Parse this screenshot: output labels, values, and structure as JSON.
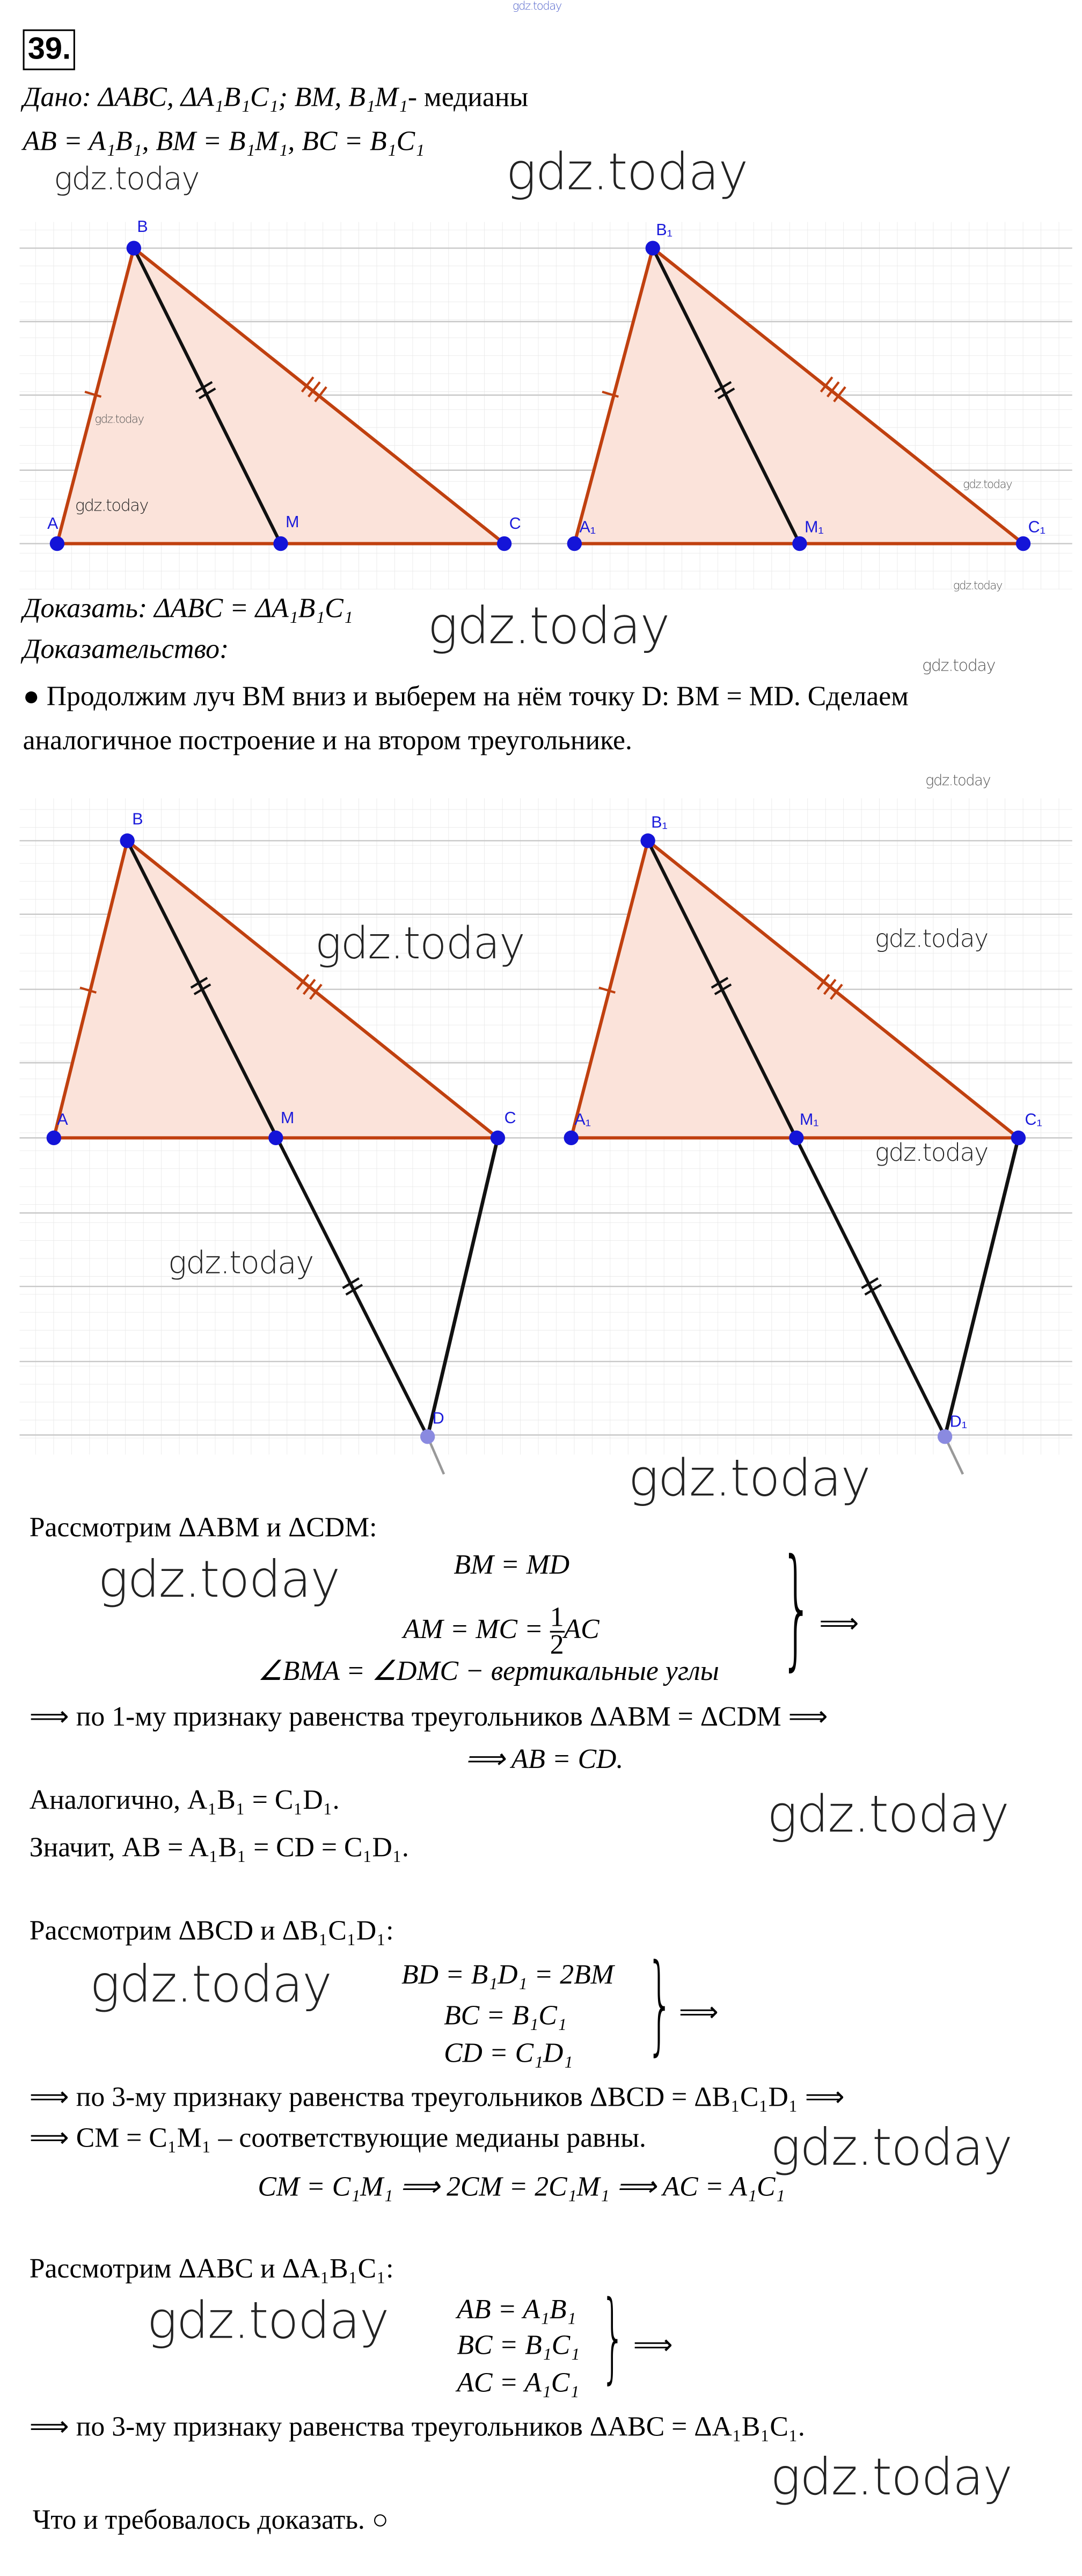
{
  "watermarks": {
    "text": "gdz.today"
  },
  "task_number": "39.",
  "given": {
    "label": "Дано",
    "line1": ": ΔABC, ΔA₁B₁C₁; BM, B₁M₁",
    "line1_tail": "- медианы",
    "line2": "AB = A₁B₁, BM = B₁M₁, BC = B₁C₁"
  },
  "figure1": {
    "labels": {
      "A": "A",
      "B": "B",
      "C": "C",
      "M": "M",
      "A1": "A₁",
      "B1": "B₁",
      "C1": "C₁",
      "M1": "M₁"
    }
  },
  "prove": {
    "label": "Доказать",
    "statement": ": ΔABC = ΔA₁B₁C₁"
  },
  "proof_label": "Доказательство:",
  "step1": {
    "line1": "● Продолжим луч BM вниз и выберем на нём точку D: BM = MD. Сделаем",
    "line2": "аналогичное построение и на втором треугольнике."
  },
  "figure2": {
    "labels": {
      "A": "A",
      "B": "B",
      "C": "C",
      "M": "M",
      "D": "D",
      "A1": "A₁",
      "B1": "B₁",
      "C1": "C₁",
      "M1": "M₁",
      "D1": "D₁"
    }
  },
  "part1": {
    "intro": "Рассмотрим ΔABM и ΔCDM:",
    "sys": [
      "BM = MD",
      "AM = MC = ",
      "AC",
      "∠BMA = ∠DMC − вертикальные углы"
    ],
    "frac_num": "1",
    "frac_den": "2",
    "implies": "⟹",
    "concl1": "⟹ по 1-му признаку равенства треугольников  ΔABM =  ΔCDM ⟹",
    "concl2": "⟹ AB = CD.",
    "similar": "Аналогично, A₁B₁ = C₁D₁.",
    "hence": "Значит, AB = A₁B₁ = CD = C₁D₁."
  },
  "part2": {
    "intro": "Рассмотрим ΔBCD и ΔB₁C₁D₁:",
    "sys": [
      "BD = B₁D₁ = 2BM",
      "BC = B₁C₁",
      "CD = C₁D₁"
    ],
    "implies": "⟹",
    "concl1": "⟹ по 3-му признаку равенства треугольников  ΔBCD =  ΔB₁C₁D₁ ⟹",
    "concl2": "⟹ CM = C₁M₁ – соответствующие медианы равны.",
    "concl3": "CM = C₁M₁ ⟹ 2CM = 2C₁M₁ ⟹ AC = A₁C₁"
  },
  "part3": {
    "intro": "Рассмотрим ΔABC и ΔA₁B₁C₁:",
    "sys": [
      "AB = A₁B₁",
      "BC = B₁C₁",
      "AC = A₁C₁"
    ],
    "implies": "⟹",
    "concl1": "⟹ по 3-му признаку равенства треугольников  ΔABC =  ΔA₁B₁C₁."
  },
  "end": "Что и требовалось доказать. ○",
  "colors": {
    "side": "#c0400f",
    "fill": "#fbe3da",
    "median": "#111111",
    "point": "#1414d8",
    "grid": "#cfcfcf"
  }
}
